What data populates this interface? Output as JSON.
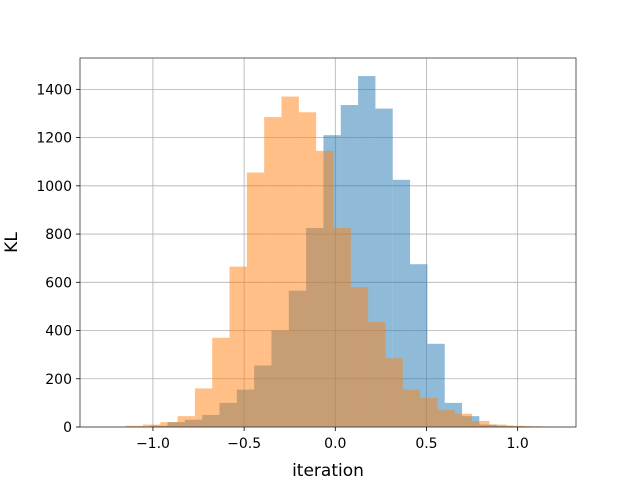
{
  "chart_data": {
    "type": "bar",
    "subtype": "overlapping-histogram",
    "title": "",
    "xlabel": "iteration",
    "ylabel": "KL",
    "xlim": [
      -1.4,
      1.32
    ],
    "ylim": [
      0,
      1530
    ],
    "grid": true,
    "legend": "none",
    "xticks": [
      {
        "value": -1.0,
        "label": "−1.0"
      },
      {
        "value": -0.5,
        "label": "−0.5"
      },
      {
        "value": 0.0,
        "label": "0.0"
      },
      {
        "value": 0.5,
        "label": "0.5"
      },
      {
        "value": 1.0,
        "label": "1.0"
      }
    ],
    "yticks": [
      {
        "value": 0,
        "label": "0"
      },
      {
        "value": 200,
        "label": "200"
      },
      {
        "value": 400,
        "label": "400"
      },
      {
        "value": 600,
        "label": "600"
      },
      {
        "value": 800,
        "label": "800"
      },
      {
        "value": 1000,
        "label": "1000"
      },
      {
        "value": 1200,
        "label": "1200"
      },
      {
        "value": 1400,
        "label": "1400"
      }
    ],
    "series": [
      {
        "color": "#1f77b4",
        "opacity": 0.5,
        "bins": [
          {
            "x0": -1.015,
            "x1": -0.92,
            "count": 5
          },
          {
            "x0": -0.92,
            "x1": -0.825,
            "count": 20
          },
          {
            "x0": -0.825,
            "x1": -0.73,
            "count": 30
          },
          {
            "x0": -0.73,
            "x1": -0.635,
            "count": 50
          },
          {
            "x0": -0.635,
            "x1": -0.54,
            "count": 100
          },
          {
            "x0": -0.54,
            "x1": -0.445,
            "count": 155
          },
          {
            "x0": -0.445,
            "x1": -0.35,
            "count": 255
          },
          {
            "x0": -0.35,
            "x1": -0.255,
            "count": 400
          },
          {
            "x0": -0.255,
            "x1": -0.16,
            "count": 565
          },
          {
            "x0": -0.16,
            "x1": -0.065,
            "count": 825
          },
          {
            "x0": -0.065,
            "x1": 0.03,
            "count": 1210
          },
          {
            "x0": 0.03,
            "x1": 0.125,
            "count": 1335
          },
          {
            "x0": 0.125,
            "x1": 0.22,
            "count": 1455
          },
          {
            "x0": 0.22,
            "x1": 0.315,
            "count": 1320
          },
          {
            "x0": 0.315,
            "x1": 0.41,
            "count": 1025
          },
          {
            "x0": 0.41,
            "x1": 0.505,
            "count": 675
          },
          {
            "x0": 0.505,
            "x1": 0.6,
            "count": 345
          },
          {
            "x0": 0.6,
            "x1": 0.695,
            "count": 100
          },
          {
            "x0": 0.695,
            "x1": 0.79,
            "count": 45
          },
          {
            "x0": 0.79,
            "x1": 0.885,
            "count": 10
          },
          {
            "x0": 0.885,
            "x1": 0.98,
            "count": 5
          },
          {
            "x0": 0.98,
            "x1": 1.075,
            "count": 3
          }
        ]
      },
      {
        "color": "#ff7f0e",
        "opacity": 0.5,
        "bins": [
          {
            "x0": -1.15,
            "x1": -1.055,
            "count": 5
          },
          {
            "x0": -1.055,
            "x1": -0.96,
            "count": 10
          },
          {
            "x0": -0.96,
            "x1": -0.865,
            "count": 20
          },
          {
            "x0": -0.865,
            "x1": -0.77,
            "count": 45
          },
          {
            "x0": -0.77,
            "x1": -0.675,
            "count": 160
          },
          {
            "x0": -0.675,
            "x1": -0.58,
            "count": 370
          },
          {
            "x0": -0.58,
            "x1": -0.485,
            "count": 665
          },
          {
            "x0": -0.485,
            "x1": -0.39,
            "count": 1055
          },
          {
            "x0": -0.39,
            "x1": -0.295,
            "count": 1285
          },
          {
            "x0": -0.295,
            "x1": -0.2,
            "count": 1370
          },
          {
            "x0": -0.2,
            "x1": -0.105,
            "count": 1305
          },
          {
            "x0": -0.105,
            "x1": -0.01,
            "count": 1145
          },
          {
            "x0": -0.01,
            "x1": 0.085,
            "count": 825
          },
          {
            "x0": 0.085,
            "x1": 0.18,
            "count": 580
          },
          {
            "x0": 0.18,
            "x1": 0.275,
            "count": 435
          },
          {
            "x0": 0.275,
            "x1": 0.37,
            "count": 285
          },
          {
            "x0": 0.37,
            "x1": 0.465,
            "count": 155
          },
          {
            "x0": 0.465,
            "x1": 0.56,
            "count": 120
          },
          {
            "x0": 0.56,
            "x1": 0.655,
            "count": 70
          },
          {
            "x0": 0.655,
            "x1": 0.75,
            "count": 55
          },
          {
            "x0": 0.75,
            "x1": 0.845,
            "count": 25
          },
          {
            "x0": 0.845,
            "x1": 0.94,
            "count": 10
          },
          {
            "x0": 0.94,
            "x1": 1.035,
            "count": 5
          },
          {
            "x0": 1.035,
            "x1": 1.13,
            "count": 3
          },
          {
            "x0": 1.13,
            "x1": 1.19,
            "count": 2
          }
        ]
      }
    ]
  }
}
